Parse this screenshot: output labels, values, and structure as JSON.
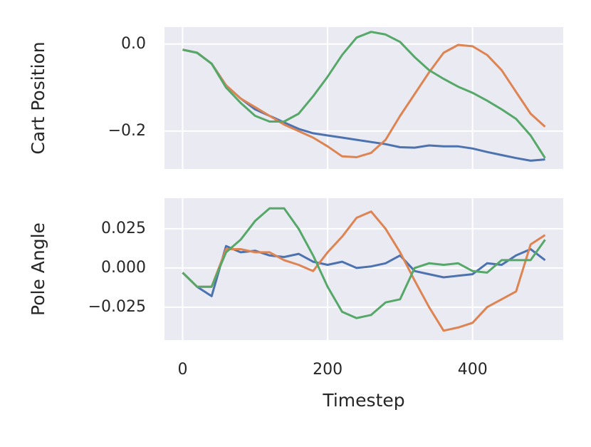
{
  "chart_data": [
    {
      "type": "line",
      "ylabel": "Cart Position",
      "x": [
        0,
        20,
        40,
        60,
        80,
        100,
        120,
        140,
        160,
        180,
        200,
        220,
        240,
        260,
        280,
        300,
        320,
        340,
        360,
        380,
        400,
        420,
        440,
        460,
        480,
        500
      ],
      "series": [
        {
          "color": "#4c72b0",
          "values": [
            -0.013,
            -0.02,
            -0.045,
            -0.095,
            -0.125,
            -0.15,
            -0.165,
            -0.18,
            -0.195,
            -0.205,
            -0.21,
            -0.215,
            -0.22,
            -0.225,
            -0.23,
            -0.237,
            -0.238,
            -0.233,
            -0.235,
            -0.235,
            -0.24,
            -0.248,
            -0.255,
            -0.262,
            -0.268,
            -0.265
          ]
        },
        {
          "color": "#dd8452",
          "values": [
            -0.013,
            -0.02,
            -0.045,
            -0.095,
            -0.125,
            -0.145,
            -0.165,
            -0.185,
            -0.2,
            -0.215,
            -0.235,
            -0.258,
            -0.26,
            -0.25,
            -0.22,
            -0.165,
            -0.115,
            -0.065,
            -0.02,
            -0.002,
            -0.005,
            -0.025,
            -0.06,
            -0.11,
            -0.16,
            -0.19
          ]
        },
        {
          "color": "#55a868",
          "values": [
            -0.013,
            -0.02,
            -0.045,
            -0.1,
            -0.135,
            -0.165,
            -0.178,
            -0.178,
            -0.16,
            -0.12,
            -0.075,
            -0.025,
            0.015,
            0.028,
            0.022,
            0.005,
            -0.03,
            -0.06,
            -0.08,
            -0.098,
            -0.112,
            -0.13,
            -0.15,
            -0.172,
            -0.21,
            -0.262
          ]
        }
      ],
      "xlim": [
        -25,
        525
      ],
      "ylim": [
        -0.287,
        0.039
      ],
      "xticks": [
        0,
        200,
        400
      ],
      "show_xtick_labels": false,
      "yticks": [
        {
          "value": -0.2,
          "label": "−0.2"
        },
        {
          "value": 0,
          "label": "0.0"
        }
      ],
      "grid": true
    },
    {
      "type": "line",
      "ylabel": "Pole Angle",
      "xlabel": "Timestep",
      "x": [
        0,
        20,
        40,
        60,
        80,
        100,
        120,
        140,
        160,
        180,
        200,
        220,
        240,
        260,
        280,
        300,
        320,
        340,
        360,
        380,
        400,
        420,
        440,
        460,
        480,
        500
      ],
      "series": [
        {
          "color": "#4c72b0",
          "values": [
            -0.003,
            -0.012,
            -0.018,
            0.014,
            0.01,
            0.011,
            0.008,
            0.007,
            0.009,
            0.004,
            0.002,
            0.004,
            0.0,
            0.001,
            0.003,
            0.008,
            -0.002,
            -0.004,
            -0.006,
            -0.005,
            -0.004,
            0.003,
            0.002,
            0.008,
            0.012,
            0.005
          ]
        },
        {
          "color": "#dd8452",
          "values": [
            -0.003,
            -0.012,
            -0.012,
            0.012,
            0.012,
            0.01,
            0.01,
            0.005,
            0.002,
            -0.002,
            0.01,
            0.02,
            0.032,
            0.036,
            0.025,
            0.01,
            -0.008,
            -0.025,
            -0.04,
            -0.038,
            -0.035,
            -0.025,
            -0.02,
            -0.015,
            0.015,
            0.021
          ]
        },
        {
          "color": "#55a868",
          "values": [
            -0.003,
            -0.012,
            -0.012,
            0.01,
            0.018,
            0.03,
            0.038,
            0.038,
            0.025,
            0.008,
            -0.012,
            -0.028,
            -0.032,
            -0.03,
            -0.022,
            -0.02,
            0.0,
            0.003,
            0.002,
            0.003,
            -0.002,
            -0.003,
            0.005,
            0.005,
            0.005,
            0.018
          ]
        }
      ],
      "xlim": [
        -25,
        525
      ],
      "ylim": [
        -0.046,
        0.0445
      ],
      "xticks": [
        0,
        200,
        400
      ],
      "show_xtick_labels": true,
      "yticks": [
        {
          "value": -0.025,
          "label": "−0.025"
        },
        {
          "value": 0,
          "label": "0.000"
        },
        0.025
      ],
      "grid": true
    }
  ]
}
